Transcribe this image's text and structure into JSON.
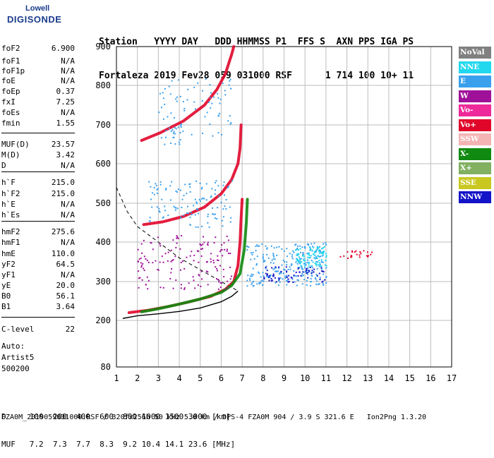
{
  "logo": {
    "line1": "Lowell",
    "line2": "DIGISONDE"
  },
  "header": {
    "line1": "Station   YYYY DAY   DDD HHMMSS P1  FFS S  AXN PPS IGA PS",
    "line2": "Fortaleza 2019 Fev28 059 031000 RSF      1 714 100 10+ 11"
  },
  "params": [
    {
      "k": "foF2",
      "v": "6.900"
    },
    {
      "k": "foF1",
      "v": "N/A"
    },
    {
      "k": "foF1p",
      "v": "N/A"
    },
    {
      "k": "foE",
      "v": "N/A"
    },
    {
      "k": "foEp",
      "v": "0.37"
    },
    {
      "k": "fxI",
      "v": "7.25"
    },
    {
      "k": "foEs",
      "v": "N/A"
    },
    {
      "k": "fmin",
      "v": "1.55"
    },
    {
      "k": "MUF(D)",
      "v": "23.57"
    },
    {
      "k": "M(D)",
      "v": "3.42"
    },
    {
      "k": "D",
      "v": "N/A"
    },
    {
      "k": "h`F",
      "v": "215.0"
    },
    {
      "k": "h`F2",
      "v": "215.0"
    },
    {
      "k": "h`E",
      "v": "N/A"
    },
    {
      "k": "h`Es",
      "v": "N/A"
    },
    {
      "k": "hmF2",
      "v": "275.6"
    },
    {
      "k": "hmF1",
      "v": "N/A"
    },
    {
      "k": "hmE",
      "v": "110.0"
    },
    {
      "k": "yF2",
      "v": "64.5"
    },
    {
      "k": "yF1",
      "v": "N/A"
    },
    {
      "k": "yE",
      "v": "20.0"
    },
    {
      "k": "B0",
      "v": "56.1"
    },
    {
      "k": "B1",
      "v": "3.64"
    },
    {
      "k": "C-level",
      "v": "22"
    }
  ],
  "auto": {
    "l1": "Auto:",
    "l2": "Artist5",
    "l3": "500200"
  },
  "legend": [
    {
      "label": "NoVal",
      "color": "#808080"
    },
    {
      "label": "NNE",
      "color": "#22d8ee"
    },
    {
      "label": "E",
      "color": "#3aa0ee"
    },
    {
      "label": "W",
      "color": "#a0119a"
    },
    {
      "label": "Vo-",
      "color": "#ee2a9a"
    },
    {
      "label": "Vo+",
      "color": "#e0062a"
    },
    {
      "label": "SSW",
      "color": "#f4b4b4"
    },
    {
      "label": "X-",
      "color": "#108a10"
    },
    {
      "label": "X+",
      "color": "#80b060"
    },
    {
      "label": "SSE",
      "color": "#c8c820"
    },
    {
      "label": "NNW",
      "color": "#1414c8"
    }
  ],
  "footer": {
    "d_row": "D     100  200  400  600  800 1000 1500 3000 [km]",
    "muf_row": "MUF   7.2  7.3  7.7  8.3  9.2 10.4 14.1 23.6 [MHz]",
    "file_row": "FZA0M_2019059031000.RSF / 320fx256h 50 kHz 5.0 km / DPS-4 FZA0M 904 / 3.9 S 321.6 E   Ion2Png 1.3.20"
  },
  "chart_data": {
    "type": "scatter",
    "xlim": [
      1,
      17
    ],
    "ylim": [
      80,
      900
    ],
    "x_ticks": [
      "1",
      "2",
      "3",
      "4",
      "5",
      "6",
      "7",
      "8",
      "9",
      "10",
      "11",
      "12",
      "13",
      "14",
      "15",
      "16",
      "17"
    ],
    "y_ticks": [
      "80",
      "200",
      "300",
      "400",
      "500",
      "600",
      "700",
      "800",
      "900"
    ],
    "grid": true,
    "traces": [
      {
        "name": "O-trace",
        "color": "#e0062a",
        "points": [
          [
            1.6,
            220
          ],
          [
            2.5,
            226
          ],
          [
            3.5,
            236
          ],
          [
            4.5,
            248
          ],
          [
            5.5,
            262
          ],
          [
            6.2,
            280
          ],
          [
            6.6,
            300
          ],
          [
            6.8,
            340
          ],
          [
            6.9,
            400
          ],
          [
            6.95,
            460
          ],
          [
            7.0,
            510
          ]
        ]
      },
      {
        "name": "X-trace",
        "color": "#108a10",
        "points": [
          [
            2.2,
            222
          ],
          [
            3.0,
            230
          ],
          [
            4.0,
            242
          ],
          [
            5.0,
            255
          ],
          [
            6.0,
            272
          ],
          [
            6.5,
            290
          ],
          [
            6.9,
            320
          ],
          [
            7.1,
            380
          ],
          [
            7.2,
            450
          ],
          [
            7.25,
            510
          ]
        ]
      },
      {
        "name": "2nd hop",
        "color": "#e0062a",
        "points": [
          [
            2.3,
            445
          ],
          [
            3.2,
            452
          ],
          [
            4.2,
            466
          ],
          [
            5.2,
            490
          ],
          [
            6.0,
            524
          ],
          [
            6.5,
            560
          ],
          [
            6.8,
            600
          ],
          [
            6.9,
            640
          ],
          [
            6.95,
            700
          ]
        ]
      },
      {
        "name": "3rd hop",
        "color": "#e0062a",
        "points": [
          [
            2.2,
            660
          ],
          [
            3.1,
            680
          ],
          [
            4.2,
            710
          ],
          [
            5.2,
            750
          ],
          [
            5.8,
            790
          ],
          [
            6.2,
            830
          ],
          [
            6.5,
            880
          ],
          [
            6.6,
            900
          ]
        ]
      }
    ],
    "profile": [
      [
        1.3,
        205
      ],
      [
        2.0,
        212
      ],
      [
        3.0,
        217
      ],
      [
        4.0,
        223
      ],
      [
        5.0,
        232
      ],
      [
        6.0,
        248
      ],
      [
        6.5,
        262
      ],
      [
        6.8,
        275.6
      ]
    ],
    "dashed_curve": [
      [
        1.0,
        540
      ],
      [
        1.5,
        480
      ],
      [
        2.0,
        440
      ],
      [
        3.0,
        400
      ],
      [
        4.0,
        360
      ],
      [
        5.0,
        330
      ],
      [
        6.0,
        300
      ],
      [
        6.8,
        276
      ]
    ]
  }
}
